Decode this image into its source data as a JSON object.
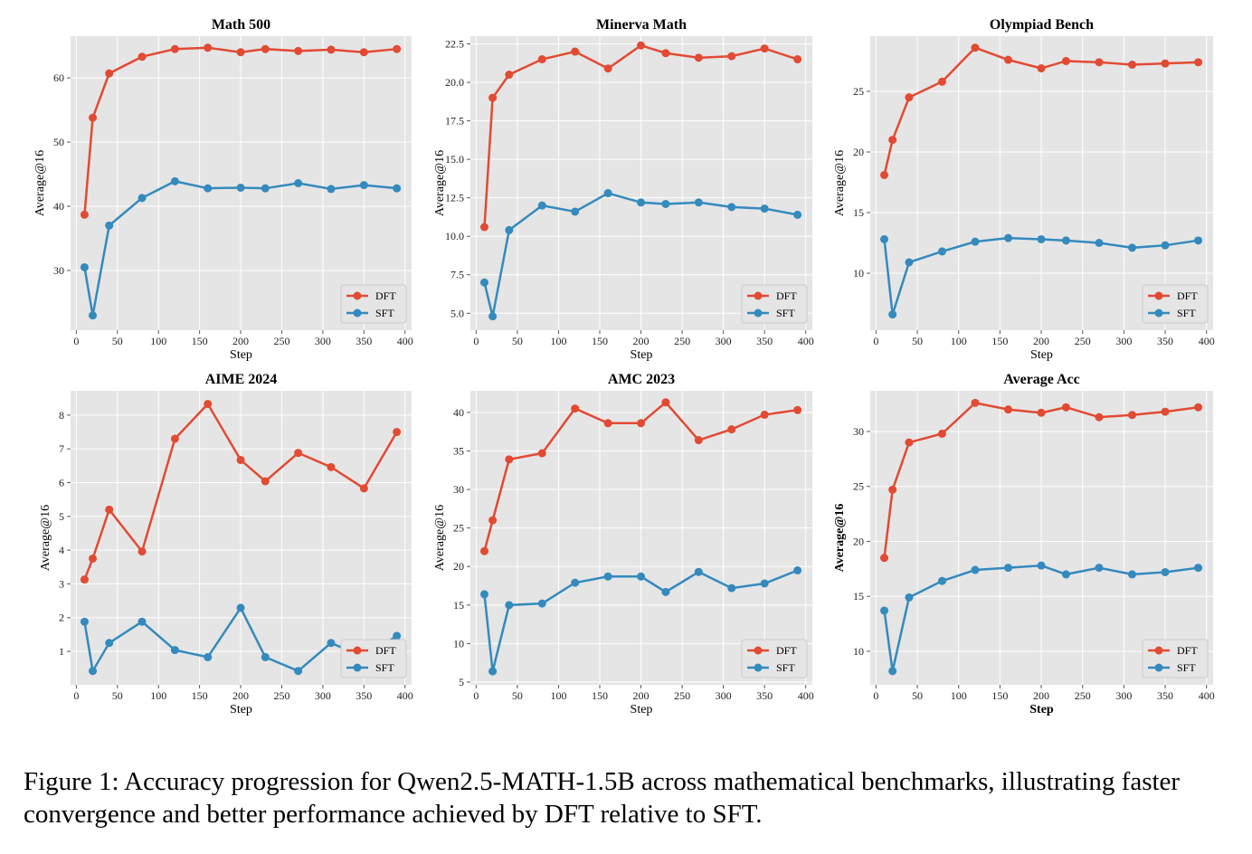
{
  "colors": {
    "DFT": "#e24a33",
    "SFT": "#348abd",
    "panel_bg": "#e5e5e5",
    "grid": "#ffffff"
  },
  "chart_data": [
    {
      "type": "line",
      "title": "Math 500",
      "xlabel": "Step",
      "ylabel": "Average@16",
      "xlim": [
        -7,
        408
      ],
      "ylim": [
        20.7,
        66.5
      ],
      "xticks": [
        0,
        50,
        100,
        150,
        200,
        250,
        300,
        350,
        400
      ],
      "yticks": [
        30,
        40,
        50,
        60
      ],
      "grid": true,
      "legend": "bottom-right",
      "x": [
        10,
        20,
        40,
        80,
        120,
        160,
        200,
        230,
        270,
        310,
        350,
        390
      ],
      "series": [
        {
          "name": "DFT",
          "values": [
            38.7,
            53.8,
            60.7,
            63.3,
            64.5,
            64.7,
            64.0,
            64.5,
            64.2,
            64.4,
            64.0,
            64.5
          ]
        },
        {
          "name": "SFT",
          "values": [
            30.5,
            23.0,
            37.0,
            41.3,
            43.9,
            42.8,
            42.9,
            42.8,
            43.6,
            42.7,
            43.3,
            42.8
          ]
        }
      ]
    },
    {
      "type": "line",
      "title": "Minerva Math",
      "xlabel": "Step",
      "ylabel": "Average@16",
      "xlim": [
        -7,
        408
      ],
      "ylim": [
        3.9,
        23.0
      ],
      "xticks": [
        0,
        50,
        100,
        150,
        200,
        250,
        300,
        350,
        400
      ],
      "yticks": [
        5.0,
        7.5,
        10.0,
        12.5,
        15.0,
        17.5,
        20.0,
        22.5
      ],
      "ytick_labels": [
        "5.0",
        "7.5",
        "10.0",
        "12.5",
        "15.0",
        "17.5",
        "20.0",
        "22.5"
      ],
      "grid": true,
      "legend": "bottom-right",
      "x": [
        10,
        20,
        40,
        80,
        120,
        160,
        200,
        230,
        270,
        310,
        350,
        390
      ],
      "series": [
        {
          "name": "DFT",
          "values": [
            10.6,
            19.0,
            20.5,
            21.5,
            22.0,
            20.9,
            22.4,
            21.9,
            21.6,
            21.7,
            22.2,
            21.5
          ]
        },
        {
          "name": "SFT",
          "values": [
            7.0,
            4.8,
            10.4,
            12.0,
            11.6,
            12.8,
            12.2,
            12.1,
            12.2,
            11.9,
            11.8,
            11.4
          ]
        }
      ]
    },
    {
      "type": "line",
      "title": "Olympiad Bench",
      "xlabel": "Step",
      "ylabel": "Average@16",
      "xlim": [
        -7,
        408
      ],
      "ylim": [
        5.3,
        29.55
      ],
      "xticks": [
        0,
        50,
        100,
        150,
        200,
        250,
        300,
        350,
        400
      ],
      "yticks": [
        10,
        15,
        20,
        25
      ],
      "grid": true,
      "legend": "bottom-right",
      "x": [
        10,
        20,
        40,
        80,
        120,
        160,
        200,
        230,
        270,
        310,
        350,
        390
      ],
      "series": [
        {
          "name": "DFT",
          "values": [
            18.1,
            21.0,
            24.5,
            25.8,
            28.6,
            27.6,
            26.9,
            27.5,
            27.4,
            27.2,
            27.3,
            27.4
          ]
        },
        {
          "name": "SFT",
          "values": [
            12.8,
            6.6,
            10.9,
            11.8,
            12.6,
            12.9,
            12.8,
            12.7,
            12.5,
            12.1,
            12.3,
            12.7
          ]
        }
      ]
    },
    {
      "type": "line",
      "title": "AIME 2024",
      "xlabel": "Step",
      "ylabel": "Average@16",
      "xlim": [
        -7,
        408
      ],
      "ylim": [
        0.01,
        8.72
      ],
      "xticks": [
        0,
        50,
        100,
        150,
        200,
        250,
        300,
        350,
        400
      ],
      "yticks": [
        1,
        2,
        3,
        4,
        5,
        6,
        7,
        8
      ],
      "grid": true,
      "legend": "bottom-right",
      "x": [
        10,
        20,
        40,
        80,
        120,
        160,
        200,
        230,
        270,
        310,
        350,
        390
      ],
      "series": [
        {
          "name": "DFT",
          "values": [
            3.13,
            3.75,
            5.2,
            3.96,
            7.3,
            8.33,
            6.67,
            6.04,
            6.88,
            6.46,
            5.83,
            7.5
          ]
        },
        {
          "name": "SFT",
          "values": [
            1.88,
            0.42,
            1.25,
            1.88,
            1.04,
            0.83,
            2.29,
            0.83,
            0.42,
            1.25,
            0.83,
            1.46
          ]
        }
      ]
    },
    {
      "type": "line",
      "title": "AMC 2023",
      "xlabel": "Step",
      "ylabel": "Average@16",
      "xlim": [
        -7,
        408
      ],
      "ylim": [
        4.65,
        42.8
      ],
      "xticks": [
        0,
        50,
        100,
        150,
        200,
        250,
        300,
        350,
        400
      ],
      "yticks": [
        5,
        10,
        15,
        20,
        25,
        30,
        35,
        40
      ],
      "grid": true,
      "legend": "bottom-right",
      "x": [
        10,
        20,
        40,
        80,
        120,
        160,
        200,
        230,
        270,
        310,
        350,
        390
      ],
      "series": [
        {
          "name": "DFT",
          "values": [
            22.0,
            26.0,
            33.9,
            34.7,
            40.5,
            38.6,
            38.6,
            41.3,
            36.4,
            37.8,
            39.7,
            40.3
          ]
        },
        {
          "name": "SFT",
          "values": [
            16.4,
            6.4,
            15.0,
            15.2,
            17.9,
            18.7,
            18.7,
            16.7,
            19.3,
            17.2,
            17.8,
            19.5
          ]
        }
      ]
    },
    {
      "type": "line",
      "title": "Average Acc",
      "xlabel": "Step",
      "ylabel": "Average@16",
      "bold_labels": true,
      "xlim": [
        -7,
        408
      ],
      "ylim": [
        6.95,
        33.7
      ],
      "xticks": [
        0,
        50,
        100,
        150,
        200,
        250,
        300,
        350,
        400
      ],
      "yticks": [
        10,
        15,
        20,
        25,
        30
      ],
      "grid": true,
      "legend": "bottom-right",
      "x": [
        10,
        20,
        40,
        80,
        120,
        160,
        200,
        230,
        270,
        310,
        350,
        390
      ],
      "series": [
        {
          "name": "DFT",
          "values": [
            18.5,
            24.7,
            29.0,
            29.8,
            32.6,
            32.0,
            31.7,
            32.2,
            31.3,
            31.5,
            31.8,
            32.2
          ]
        },
        {
          "name": "SFT",
          "values": [
            13.7,
            8.2,
            14.9,
            16.4,
            17.4,
            17.6,
            17.8,
            17.0,
            17.6,
            17.0,
            17.2,
            17.6
          ]
        }
      ]
    }
  ],
  "caption": "Figure 1: Accuracy progression for Qwen2.5-MATH-1.5B across mathematical benchmarks, illustrating faster convergence and better performance achieved by DFT relative to SFT."
}
